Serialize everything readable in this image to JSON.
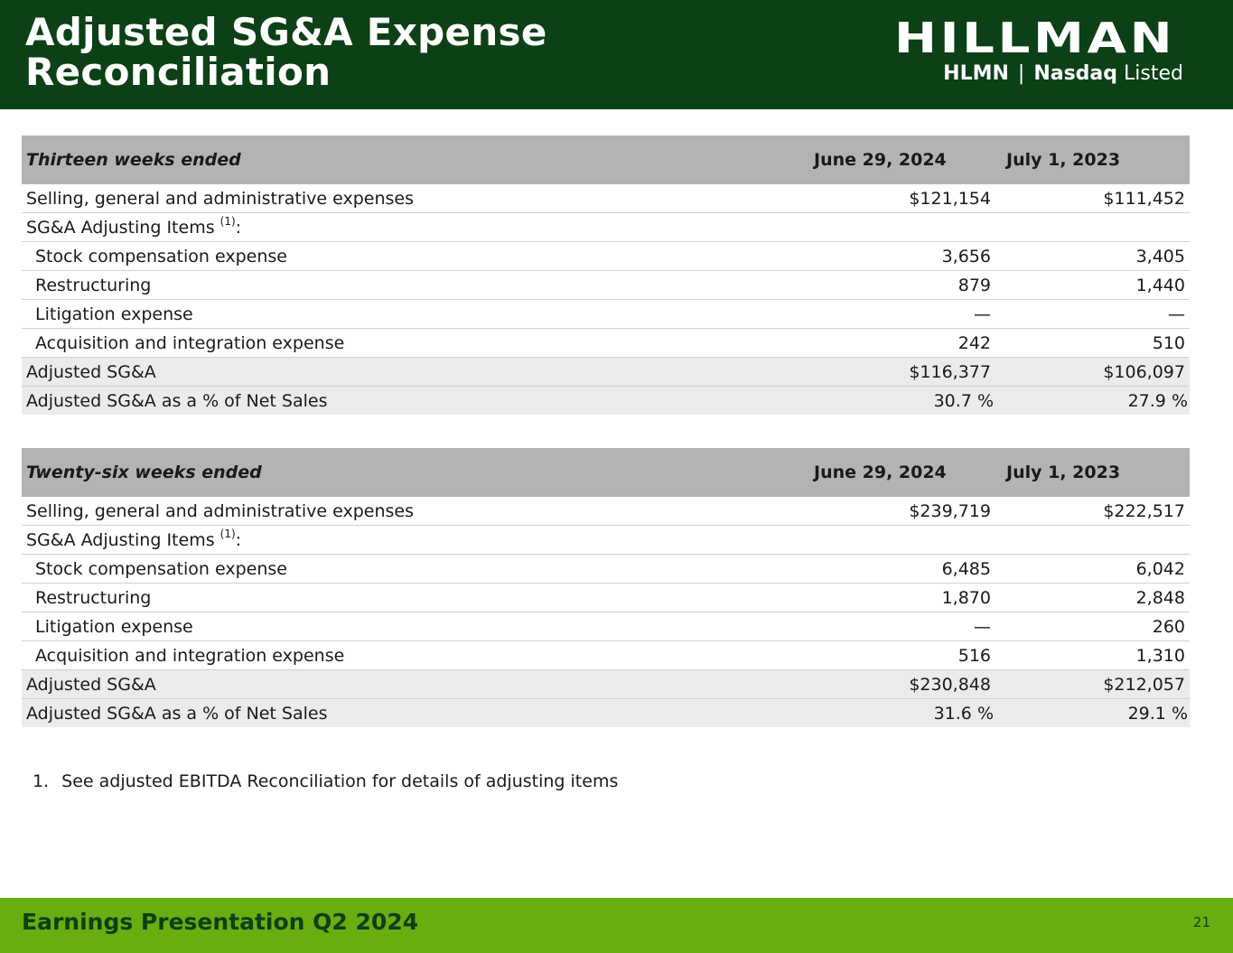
{
  "header": {
    "title_line1": "Adjusted SG&A Expense",
    "title_line2": "Reconciliation",
    "logo_name": "HILLMAN",
    "ticker": "HLMN",
    "exchange": "Nasdaq",
    "listed": "Listed",
    "bg_color": "#0c4016"
  },
  "table1": {
    "period": "Thirteen weeks ended",
    "col1": "June 29, 2024",
    "col2": "July 1, 2023",
    "rows": [
      {
        "label": "Selling, general and administrative expenses",
        "v1": "$121,154",
        "v2": "$111,452"
      },
      {
        "label": "SG&A Adjusting Items",
        "sup": "(1)",
        "suffix": ":",
        "v1": "",
        "v2": ""
      },
      {
        "label": "Stock compensation expense",
        "v1": "3,656",
        "v2": "3,405"
      },
      {
        "label": "Restructuring",
        "v1": "879",
        "v2": "1,440"
      },
      {
        "label": "Litigation expense",
        "v1": "—",
        "v2": "—"
      },
      {
        "label": "Acquisition and integration expense",
        "v1": "242",
        "v2": "510"
      },
      {
        "label": "Adjusted SG&A",
        "v1": "$116,377",
        "v2": "$106,097"
      },
      {
        "label": "Adjusted SG&A as a % of Net Sales",
        "v1": "30.7 %",
        "v2": "27.9 %"
      }
    ]
  },
  "table2": {
    "period": "Twenty-six weeks ended",
    "col1": "June 29, 2024",
    "col2": "July 1, 2023",
    "rows": [
      {
        "label": "Selling, general and administrative expenses",
        "v1": "$239,719",
        "v2": "$222,517"
      },
      {
        "label": "SG&A Adjusting Items",
        "sup": "(1)",
        "suffix": ":",
        "v1": "",
        "v2": ""
      },
      {
        "label": "Stock compensation expense",
        "v1": "6,485",
        "v2": "6,042"
      },
      {
        "label": "Restructuring",
        "v1": "1,870",
        "v2": "2,848"
      },
      {
        "label": "Litigation expense",
        "v1": "—",
        "v2": "260"
      },
      {
        "label": "Acquisition and integration expense",
        "v1": "516",
        "v2": "1,310"
      },
      {
        "label": "Adjusted SG&A",
        "v1": "$230,848",
        "v2": "$212,057"
      },
      {
        "label": "Adjusted SG&A as a % of Net Sales",
        "v1": "31.6 %",
        "v2": "29.1 %"
      }
    ]
  },
  "footnote": {
    "number": "1.",
    "text": "See adjusted EBITDA Reconciliation for details of adjusting items"
  },
  "footer": {
    "text": "Earnings Presentation Q2 2024",
    "page": "21",
    "bg_color": "#6aad10"
  }
}
